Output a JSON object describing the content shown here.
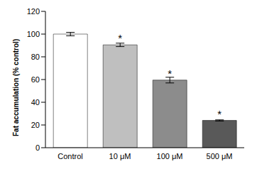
{
  "chart_data": {
    "type": "bar",
    "y_label": "Fat accumulation (% control)",
    "categories": [
      "Control",
      "10 μM",
      "100 μM",
      "500 μM"
    ],
    "values": [
      100,
      90.5,
      59.5,
      24
    ],
    "errors": [
      1.5,
      1.5,
      2.5,
      0.5
    ],
    "colors": [
      "#ffffff",
      "#bfbfbf",
      "#8c8c8c",
      "#595959"
    ],
    "ylim": [
      0,
      120
    ],
    "yticks": [
      0,
      20,
      40,
      60,
      80,
      100,
      120
    ],
    "grid": false,
    "annotations": [
      {
        "category": "10 μM",
        "text": "*"
      },
      {
        "category": "100 μM",
        "text": "*"
      },
      {
        "category": "500 μM",
        "text": "*"
      }
    ]
  }
}
